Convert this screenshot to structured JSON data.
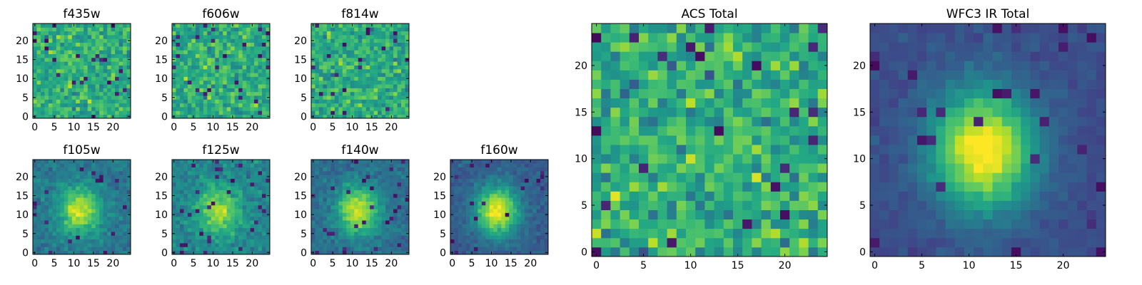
{
  "figure": {
    "description_colors": {
      "colormap": "viridis"
    }
  },
  "chart_data": [
    {
      "type": "heatmap",
      "title": "f435w",
      "x_ticks": [
        "0",
        "5",
        "10",
        "15",
        "20"
      ],
      "y_ticks": [
        "0",
        "5",
        "10",
        "15",
        "20"
      ],
      "xlim": [
        -0.5,
        24.5
      ],
      "ylim": [
        -0.5,
        24.5
      ],
      "grid": false,
      "colormap": "viridis",
      "field": "noise",
      "seed": 11,
      "structure": 0.1
    },
    {
      "type": "heatmap",
      "title": "f606w",
      "x_ticks": [
        "0",
        "5",
        "10",
        "15",
        "20"
      ],
      "y_ticks": [
        "0",
        "5",
        "10",
        "15",
        "20"
      ],
      "xlim": [
        -0.5,
        24.5
      ],
      "ylim": [
        -0.5,
        24.5
      ],
      "grid": false,
      "colormap": "viridis",
      "field": "noise",
      "seed": 23,
      "structure": 0.15
    },
    {
      "type": "heatmap",
      "title": "f814w",
      "x_ticks": [
        "0",
        "5",
        "10",
        "15",
        "20"
      ],
      "y_ticks": [
        "0",
        "5",
        "10",
        "15",
        "20"
      ],
      "xlim": [
        -0.5,
        24.5
      ],
      "ylim": [
        -0.5,
        24.5
      ],
      "grid": false,
      "colormap": "viridis",
      "field": "noise",
      "seed": 37,
      "structure": 0.15
    },
    {
      "type": "heatmap",
      "title": "f105w",
      "x_ticks": [
        "0",
        "5",
        "10",
        "15",
        "20"
      ],
      "y_ticks": [
        "0",
        "5",
        "10",
        "15",
        "20"
      ],
      "xlim": [
        -0.5,
        24.5
      ],
      "ylim": [
        -0.5,
        24.5
      ],
      "grid": false,
      "colormap": "viridis",
      "field": "source",
      "seed": 41,
      "structure": 0.45
    },
    {
      "type": "heatmap",
      "title": "f125w",
      "x_ticks": [
        "0",
        "5",
        "10",
        "15",
        "20"
      ],
      "y_ticks": [
        "0",
        "5",
        "10",
        "15",
        "20"
      ],
      "xlim": [
        -0.5,
        24.5
      ],
      "ylim": [
        -0.5,
        24.5
      ],
      "grid": false,
      "colormap": "viridis",
      "field": "source",
      "seed": 53,
      "structure": 0.35
    },
    {
      "type": "heatmap",
      "title": "f140w",
      "x_ticks": [
        "0",
        "5",
        "10",
        "15",
        "20"
      ],
      "y_ticks": [
        "0",
        "5",
        "10",
        "15",
        "20"
      ],
      "xlim": [
        -0.5,
        24.5
      ],
      "ylim": [
        -0.5,
        24.5
      ],
      "grid": false,
      "colormap": "viridis",
      "field": "source",
      "seed": 67,
      "structure": 0.5
    },
    {
      "type": "heatmap",
      "title": "f160w",
      "x_ticks": [
        "0",
        "5",
        "10",
        "15",
        "20"
      ],
      "y_ticks": [
        "0",
        "5",
        "10",
        "15",
        "20"
      ],
      "xlim": [
        -0.5,
        24.5
      ],
      "ylim": [
        -0.5,
        24.5
      ],
      "grid": false,
      "colormap": "viridis",
      "field": "source",
      "seed": 79,
      "structure": 0.6
    },
    {
      "type": "heatmap",
      "title": "ACS Total",
      "x_ticks": [
        "0",
        "5",
        "10",
        "15",
        "20"
      ],
      "y_ticks": [
        "0",
        "5",
        "10",
        "15",
        "20"
      ],
      "xlim": [
        -0.5,
        24.5
      ],
      "ylim": [
        -0.5,
        24.5
      ],
      "grid": false,
      "colormap": "viridis",
      "field": "noise",
      "seed": 97,
      "structure": 0.25
    },
    {
      "type": "heatmap",
      "title": "WFC3 IR Total",
      "x_ticks": [
        "0",
        "5",
        "10",
        "15",
        "20"
      ],
      "y_ticks": [
        "0",
        "5",
        "10",
        "15",
        "20"
      ],
      "xlim": [
        -0.5,
        24.5
      ],
      "ylim": [
        -0.5,
        24.5
      ],
      "grid": false,
      "colormap": "viridis",
      "field": "source",
      "seed": 113,
      "structure": 0.7
    }
  ]
}
